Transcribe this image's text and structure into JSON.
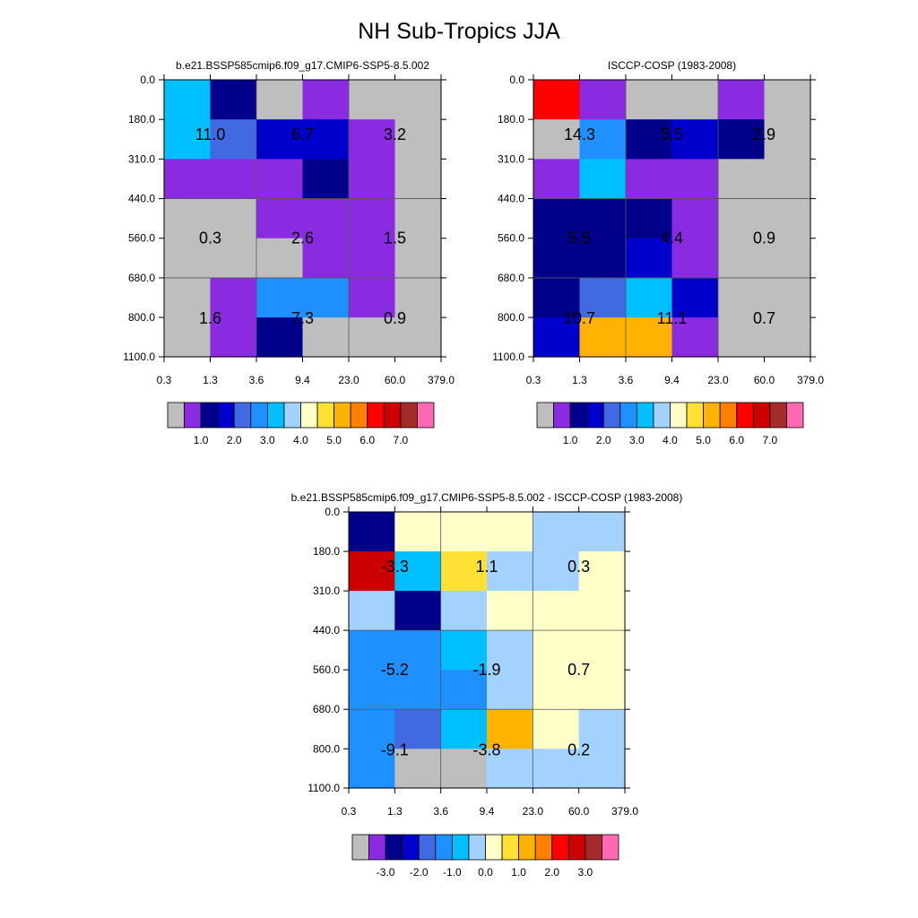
{
  "figure_title": "NH Sub-Tropics JJA",
  "palette_abs": [
    "#bebebe",
    "#8a2be2",
    "#00008b",
    "#0000cd",
    "#4169e1",
    "#1e90ff",
    "#00bfff",
    "#a3d2ff",
    "#ffffc8",
    "#ffe135",
    "#ffb300",
    "#ff7f00",
    "#ff0000",
    "#cd0000",
    "#a52a2a",
    "#ff69b4"
  ],
  "palette_diff": [
    "#bebebe",
    "#8a2be2",
    "#00008b",
    "#0000cd",
    "#4169e1",
    "#1e90ff",
    "#00bfff",
    "#a3d2ff",
    "#ffffc8",
    "#ffe135",
    "#ffb300",
    "#ff7f00",
    "#ff0000",
    "#cd0000",
    "#a52a2a",
    "#ff69b4"
  ],
  "chart_data": [
    {
      "type": "heatmap",
      "title": "b.e21.BSSP585cmip6.f09_g17.CMIP6-SSP5-8.5.002",
      "x_ticks": [
        "0.3",
        "1.3",
        "3.6",
        "9.4",
        "23.0",
        "60.0",
        "379.0"
      ],
      "y_ticks": [
        "0.0",
        "180.0",
        "310.0",
        "440.0",
        "560.0",
        "680.0",
        "800.0",
        "1100.0"
      ],
      "cell_color_index": [
        [
          6,
          2,
          0,
          1,
          0,
          0
        ],
        [
          6,
          4,
          3,
          3,
          1,
          0
        ],
        [
          1,
          1,
          1,
          2,
          1,
          0
        ],
        [
          0,
          0,
          1,
          1,
          1,
          0
        ],
        [
          0,
          0,
          0,
          1,
          1,
          0
        ],
        [
          0,
          1,
          5,
          5,
          1,
          0
        ],
        [
          0,
          1,
          2,
          0,
          0,
          0
        ]
      ],
      "group_values": [
        [
          "11.0",
          "6.7",
          "3.2"
        ],
        [
          "0.3",
          "2.6",
          "1.5"
        ],
        [
          "1.6",
          "7.3",
          "0.9"
        ]
      ],
      "colorbar_labels": [
        "1.0",
        "2.0",
        "3.0",
        "4.0",
        "5.0",
        "6.0",
        "7.0"
      ]
    },
    {
      "type": "heatmap",
      "title": "ISCCP-COSP (1983-2008)",
      "x_ticks": [
        "0.3",
        "1.3",
        "3.6",
        "9.4",
        "23.0",
        "60.0",
        "379.0"
      ],
      "y_ticks": [
        "0.0",
        "180.0",
        "310.0",
        "440.0",
        "560.0",
        "680.0",
        "800.0",
        "1100.0"
      ],
      "cell_color_index": [
        [
          12,
          1,
          0,
          0,
          1,
          0
        ],
        [
          0,
          5,
          2,
          3,
          2,
          0
        ],
        [
          1,
          6,
          1,
          1,
          0,
          0
        ],
        [
          2,
          2,
          2,
          1,
          0,
          0
        ],
        [
          2,
          2,
          3,
          1,
          0,
          0
        ],
        [
          2,
          4,
          6,
          3,
          0,
          0
        ],
        [
          3,
          10,
          10,
          1,
          0,
          0
        ]
      ],
      "group_values": [
        [
          "14.3",
          "5.5",
          "2.9"
        ],
        [
          "5.5",
          "4.4",
          "0.9"
        ],
        [
          "10.7",
          "11.1",
          "0.7"
        ]
      ],
      "colorbar_labels": [
        "1.0",
        "2.0",
        "3.0",
        "4.0",
        "5.0",
        "6.0",
        "7.0"
      ]
    },
    {
      "type": "heatmap",
      "title": "b.e21.BSSP585cmip6.f09_g17.CMIP6-SSP5-8.5.002 - ISCCP-COSP (1983-2008)",
      "x_ticks": [
        "0.3",
        "1.3",
        "3.6",
        "9.4",
        "23.0",
        "60.0",
        "379.0"
      ],
      "y_ticks": [
        "0.0",
        "180.0",
        "310.0",
        "440.0",
        "560.0",
        "680.0",
        "800.0",
        "1100.0"
      ],
      "cell_color_index": [
        [
          2,
          8,
          8,
          8,
          7,
          7
        ],
        [
          13,
          6,
          9,
          7,
          7,
          8
        ],
        [
          7,
          2,
          7,
          8,
          8,
          8
        ],
        [
          5,
          5,
          6,
          7,
          8,
          8
        ],
        [
          5,
          5,
          5,
          7,
          8,
          8
        ],
        [
          5,
          4,
          6,
          10,
          8,
          7
        ],
        [
          5,
          0,
          0,
          7,
          7,
          7
        ]
      ],
      "group_values": [
        [
          "-3.3",
          "1.1",
          "0.3"
        ],
        [
          "-5.2",
          "-1.9",
          "0.7"
        ],
        [
          "-9.1",
          "-3.8",
          "0.2"
        ]
      ],
      "colorbar_labels": [
        "-3.0",
        "-2.0",
        "-1.0",
        "0.0",
        "1.0",
        "2.0",
        "3.0"
      ]
    }
  ]
}
